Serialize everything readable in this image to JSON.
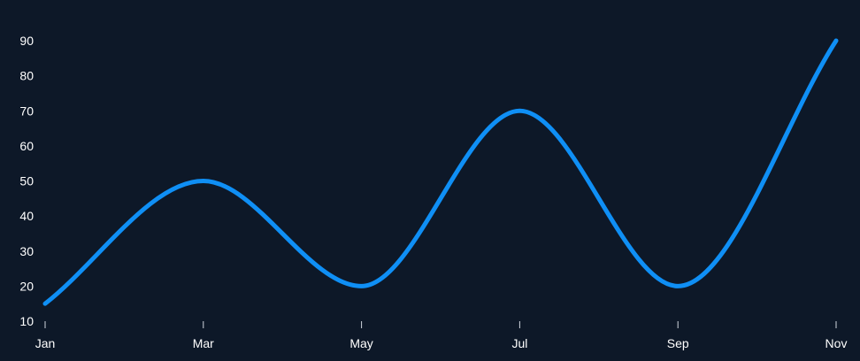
{
  "chart_data": {
    "type": "line",
    "title": "",
    "xlabel": "",
    "ylabel": "",
    "x": [
      "Jan",
      "Mar",
      "May",
      "Jul",
      "Sep",
      "Nov"
    ],
    "series": [
      {
        "values": [
          15,
          50,
          20,
          70,
          20,
          90
        ]
      }
    ],
    "ylim": [
      10,
      90
    ],
    "yticks": [
      10,
      20,
      30,
      40,
      50,
      60,
      70,
      80,
      90
    ],
    "grid": false,
    "legend": "none",
    "curve": "smooth",
    "colors": {
      "background": "#0d1828",
      "line": "#0f8ff5",
      "text": "#ffffff",
      "tick": "#d0d6de"
    }
  }
}
